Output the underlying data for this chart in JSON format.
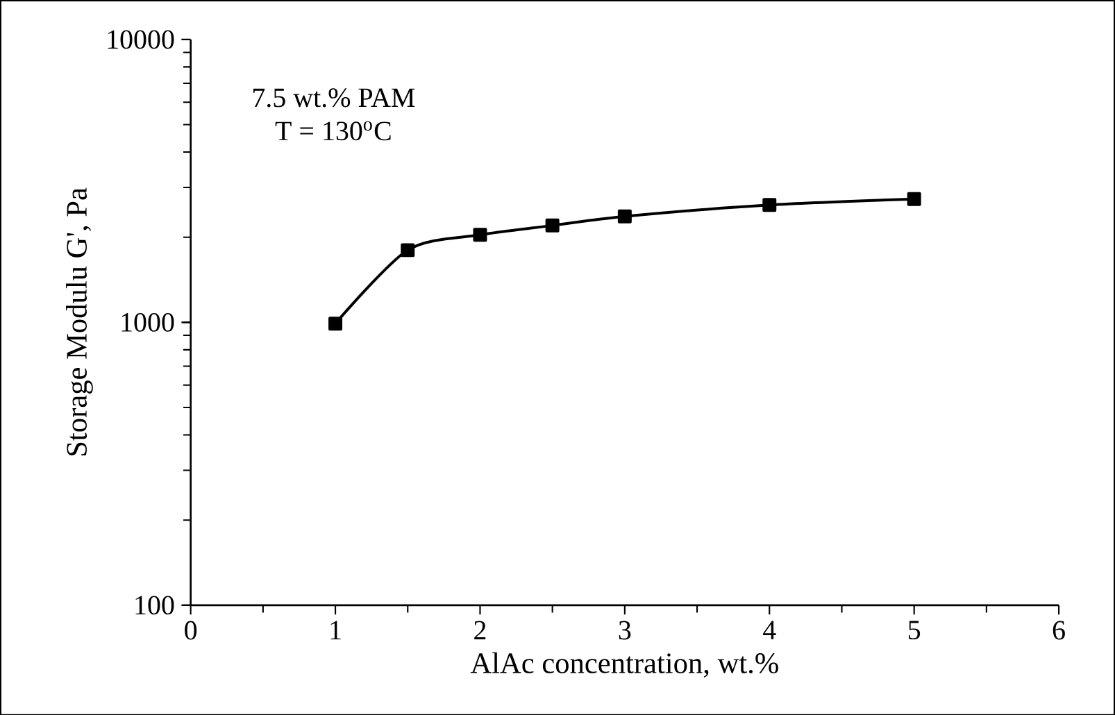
{
  "chart_data": {
    "type": "line",
    "xlabel": "AlAc concentration, wt.%",
    "ylabel": "Storage Modulu G', Pa",
    "annotations": [
      "7.5 wt.% PAM",
      "T = 130$^{o}$C"
    ],
    "x": [
      1,
      1.5,
      2,
      2.5,
      3,
      4,
      5
    ],
    "series": [
      {
        "color": "#000000",
        "values": [
          990,
          1800,
          2040,
          2200,
          2370,
          2600,
          2730
        ]
      }
    ],
    "xlim": [
      0,
      6
    ],
    "xticks": [
      0,
      1,
      2,
      3,
      4,
      5,
      6
    ],
    "ylim": [
      100,
      10000
    ],
    "yticks": [
      100,
      1000,
      10000
    ],
    "log": "y",
    "grid": false,
    "marker": "square",
    "line_style": "solid"
  }
}
